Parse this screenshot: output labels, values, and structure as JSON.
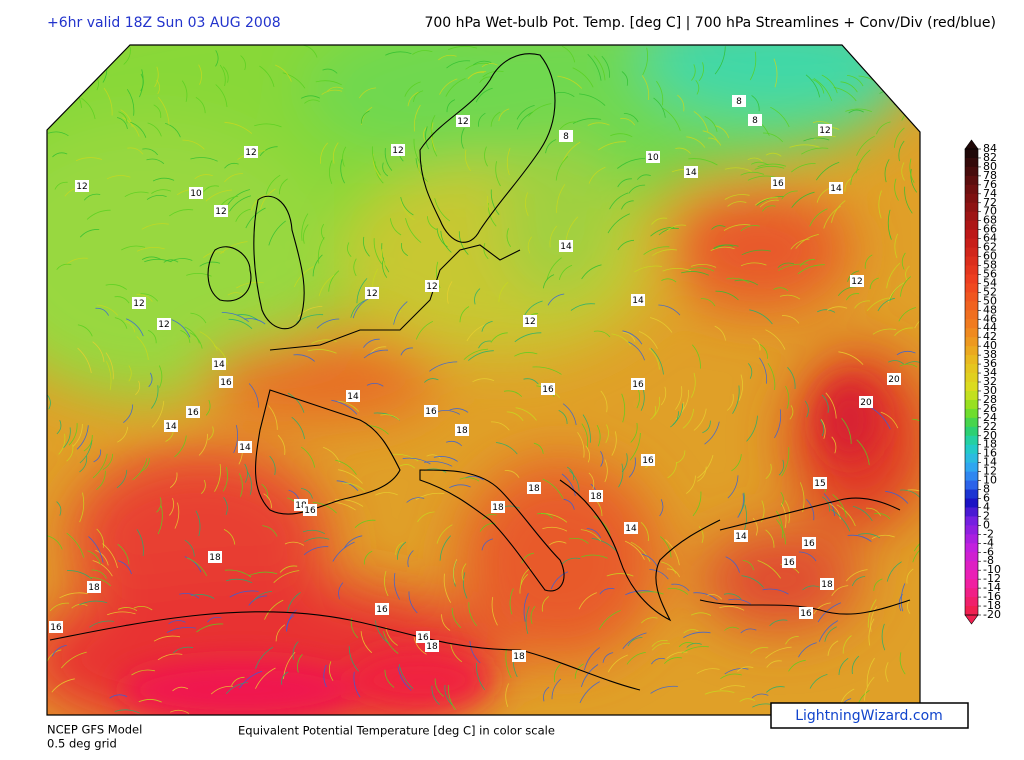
{
  "header": {
    "left": "+6hr valid 18Z Sun 03 AUG 2008",
    "right": "700 hPa Wet-bulb Pot. Temp. [deg C] | 700 hPa Streamlines + Conv/Div (red/blue)"
  },
  "footer": {
    "model": "NCEP GFS Model",
    "grid": "0.5 deg grid",
    "caption": "Equivalent Potential Temperature [deg C] in color scale",
    "brand": "LightningWizard.com"
  },
  "colorbar": {
    "labels": [
      84,
      82,
      80,
      78,
      76,
      74,
      72,
      70,
      68,
      66,
      64,
      62,
      60,
      58,
      56,
      54,
      52,
      50,
      48,
      46,
      44,
      42,
      40,
      38,
      36,
      34,
      32,
      30,
      28,
      26,
      24,
      22,
      20,
      18,
      16,
      14,
      12,
      10,
      8,
      6,
      4,
      2,
      0,
      -2,
      -4,
      -6,
      -8,
      -10,
      -12,
      -14,
      -16,
      -18,
      -20
    ]
  },
  "map": {
    "contour_labels": [
      12,
      12,
      12,
      10,
      12,
      12,
      12,
      12,
      12,
      12,
      12,
      8,
      8,
      8,
      12,
      10,
      14,
      16,
      14,
      14,
      14,
      12,
      14,
      16,
      16,
      14,
      14,
      14,
      16,
      16,
      16,
      18,
      20,
      20,
      16,
      18,
      18,
      18,
      18,
      16,
      18,
      18,
      16,
      16,
      16,
      18,
      18,
      14,
      14,
      15,
      16,
      16,
      18,
      16
    ]
  }
}
